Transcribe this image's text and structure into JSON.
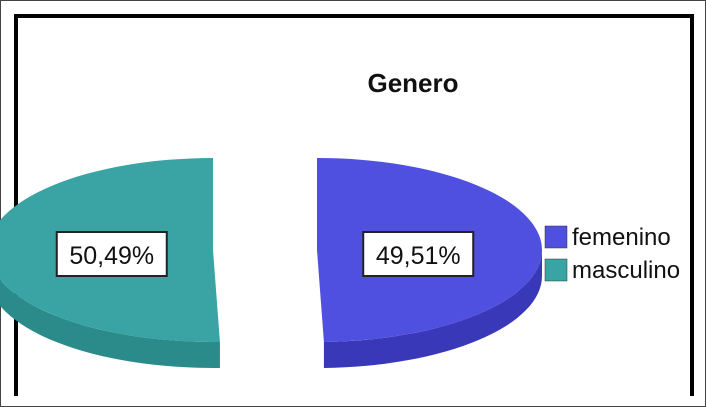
{
  "chart_data": {
    "type": "pie",
    "title": "Genero",
    "slices": [
      {
        "label": "femenino",
        "value": 49.51,
        "display": "49,51%",
        "color": "#4f4fe0",
        "side_color": "#3838b8"
      },
      {
        "label": "masculino",
        "value": 50.49,
        "display": "50,49%",
        "color": "#3aa3a3",
        "side_color": "#2b8a8a"
      }
    ],
    "legend": {
      "position": "right"
    },
    "style": "3d-exploded"
  }
}
